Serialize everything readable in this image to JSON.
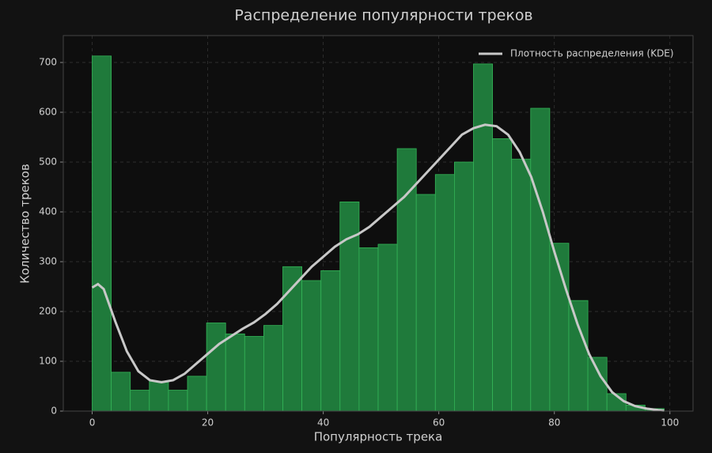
{
  "chart_data": {
    "type": "histogram",
    "title": "Распределение популярности треков",
    "x_label": "Популярность трека",
    "y_label": "Количество треков",
    "bins": [
      0,
      3.3,
      6.6,
      9.9,
      13.2,
      16.5,
      19.8,
      23.1,
      26.4,
      29.7,
      33,
      36.3,
      39.6,
      42.9,
      46.2,
      49.5,
      52.8,
      56.1,
      59.4,
      62.7,
      66,
      69.3,
      72.6,
      75.9,
      79.2,
      82.5,
      85.8,
      89.1,
      92.4,
      95.7,
      99
    ],
    "values": [
      713,
      78,
      42,
      60,
      42,
      70,
      177,
      155,
      150,
      172,
      290,
      262,
      282,
      420,
      328,
      335,
      527,
      435,
      475,
      500,
      697,
      547,
      506,
      608,
      337,
      222,
      108,
      35,
      12,
      5
    ],
    "color": "#1f7a3b",
    "edge_color": "#34b457",
    "kde": {
      "name": "Плотность распределения (KDE)",
      "color": "#c8c8c8",
      "x": [
        0,
        1,
        2,
        4,
        6,
        8,
        10,
        12,
        14,
        16,
        18,
        20,
        22,
        24,
        26,
        28,
        30,
        32,
        34,
        36,
        38,
        40,
        42,
        44,
        46,
        48,
        50,
        52,
        54,
        56,
        58,
        60,
        62,
        64,
        66,
        68,
        70,
        72,
        74,
        76,
        78,
        80,
        82,
        84,
        86,
        88,
        90,
        92,
        94,
        96,
        98,
        99
      ],
      "values": [
        248,
        255,
        245,
        180,
        120,
        80,
        62,
        58,
        62,
        75,
        95,
        115,
        135,
        150,
        165,
        178,
        195,
        215,
        240,
        265,
        290,
        310,
        330,
        345,
        355,
        370,
        390,
        410,
        430,
        455,
        480,
        505,
        530,
        555,
        568,
        575,
        572,
        555,
        520,
        470,
        400,
        320,
        245,
        175,
        115,
        70,
        38,
        20,
        10,
        5,
        2,
        1
      ]
    },
    "xlim": [
      -5,
      104
    ],
    "ylim": [
      0,
      754
    ],
    "xticks": [
      0,
      20,
      40,
      60,
      80,
      100
    ],
    "yticks": [
      0,
      100,
      200,
      300,
      400,
      500,
      600,
      700
    ],
    "grid": true,
    "legend": "upper right"
  }
}
